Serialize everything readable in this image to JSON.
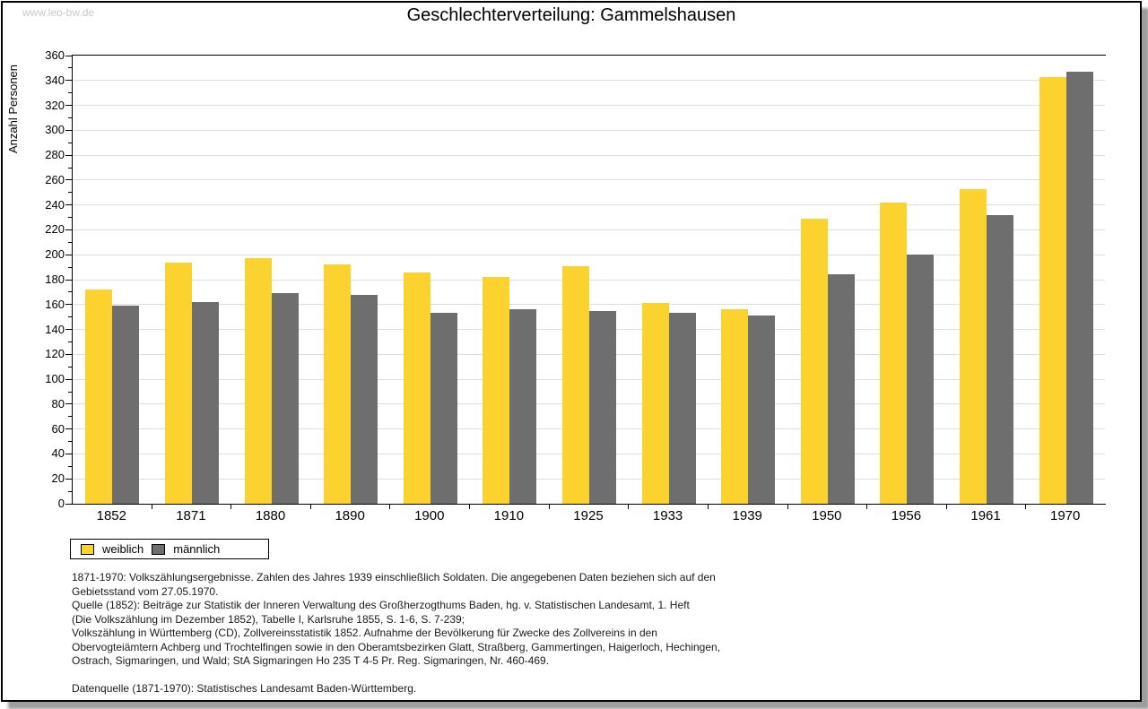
{
  "watermark": "www.leo-bw.de",
  "title": "Geschlechterverteilung: Gammelshausen",
  "legend": {
    "items": [
      {
        "label": "weiblich",
        "color": "#FCD22E"
      },
      {
        "label": "männlich",
        "color": "#6E6E6E"
      }
    ]
  },
  "footnotes": {
    "lines": [
      "1871-1970: Volkszählungsergebnisse. Zahlen des Jahres 1939 einschließlich Soldaten. Die angegebenen Daten beziehen sich auf den",
      "Gebietsstand vom 27.05.1970.",
      "Quelle (1852): Beiträge zur Statistik der Inneren Verwaltung des Großherzogthums Baden, hg. v. Statistischen Landesamt, 1. Heft",
      "(Die Volkszählung im Dezember 1852), Tabelle I, Karlsruhe 1855, S. 1-6, S. 7-239;",
      "Volkszählung in Württemberg (CD), Zollvereinsstatistik 1852. Aufnahme der Bevölkerung für Zwecke des Zollvereins in den",
      "Obervogteiämtern Achberg und Trochtelfingen sowie in den Oberamtsbezirken Glatt, Straßberg, Gammertingen, Haigerloch, Hechingen,",
      "Ostrach, Sigmaringen, und Wald; StA Sigmaringen Ho 235 T 4-5 Pr. Reg. Sigmaringen, Nr. 460-469."
    ],
    "datasource": "Datenquelle (1871-1970): Statistisches Landesamt Baden-Württemberg."
  },
  "chart_data": {
    "type": "bar",
    "title": "Geschlechterverteilung: Gammelshausen",
    "xlabel": "",
    "ylabel": "Anzahl Personen",
    "ylim": [
      0,
      360
    ],
    "ytick_step": 20,
    "y_minor_step": 10,
    "grid": true,
    "legend_position": "bottom-left",
    "categories": [
      "1852",
      "1871",
      "1880",
      "1890",
      "1900",
      "1910",
      "1925",
      "1933",
      "1939",
      "1950",
      "1956",
      "1961",
      "1970"
    ],
    "series": [
      {
        "name": "weiblich",
        "color": "#FCD22E",
        "values": [
          172,
          194,
          197,
          192,
          186,
          182,
          191,
          161,
          156,
          229,
          242,
          253,
          343
        ]
      },
      {
        "name": "männlich",
        "color": "#6E6E6E",
        "values": [
          159,
          162,
          169,
          168,
          153,
          156,
          155,
          153,
          151,
          184,
          200,
          232,
          347
        ]
      }
    ]
  }
}
